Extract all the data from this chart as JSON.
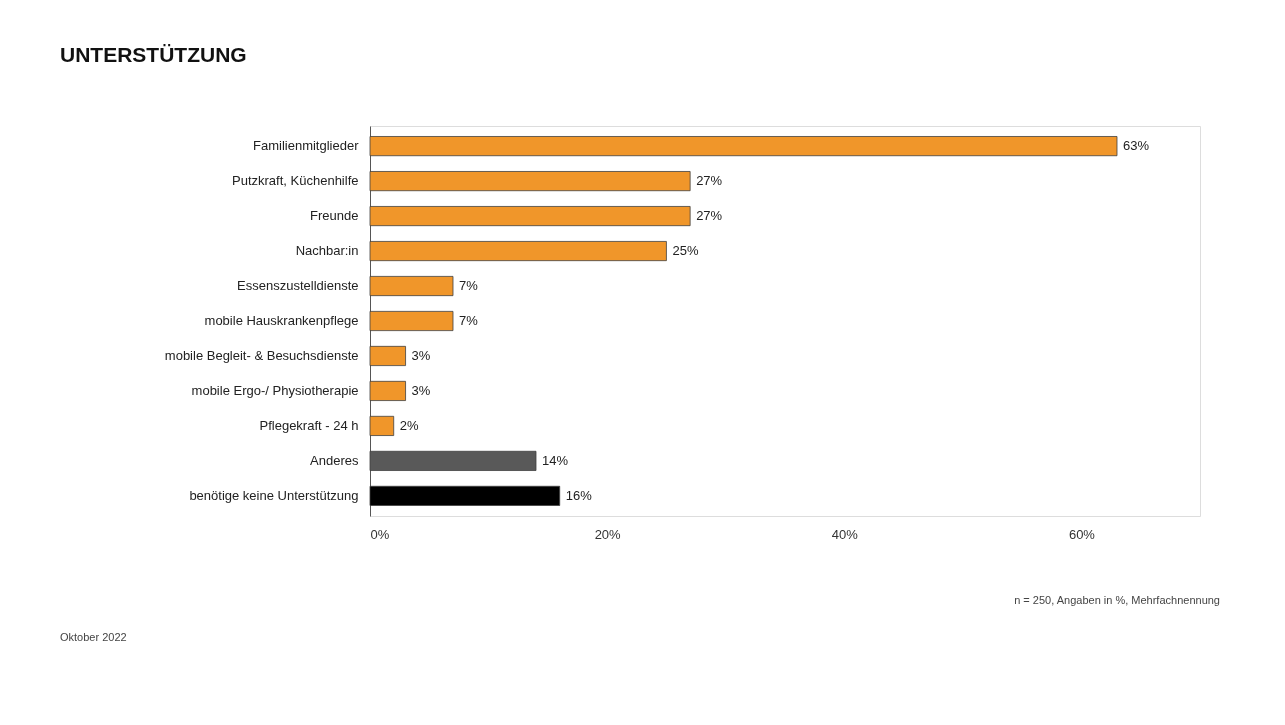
{
  "chart_data": {
    "type": "bar",
    "orientation": "horizontal",
    "title": "UNTERSTÜTZUNG",
    "categories": [
      "Familienmitglieder",
      "Putzkraft, Küchenhilfe",
      "Freunde",
      "Nachbar:in",
      "Essenszustelldienste",
      "mobile Hauskrankenpflege",
      "mobile Begleit- & Besuchsdienste",
      "mobile Ergo-/ Physiotherapie",
      "Pflegekraft - 24 h",
      "Anderes",
      "benötige keine Unterstützung"
    ],
    "values": [
      63,
      27,
      27,
      25,
      7,
      7,
      3,
      3,
      2,
      14,
      16
    ],
    "value_labels": [
      "63%",
      "27%",
      "27%",
      "25%",
      "7%",
      "7%",
      "3%",
      "3%",
      "2%",
      "14%",
      "16%"
    ],
    "colors": [
      "#f0962a",
      "#f0962a",
      "#f0962a",
      "#f0962a",
      "#f0962a",
      "#f0962a",
      "#f0962a",
      "#f0962a",
      "#f0962a",
      "#595959",
      "#000000"
    ],
    "xlim": [
      0,
      70
    ],
    "xticks": [
      {
        "value": 0,
        "label": "0%"
      },
      {
        "value": 20,
        "label": "20%"
      },
      {
        "value": 40,
        "label": "40%"
      },
      {
        "value": 60,
        "label": "60%"
      }
    ],
    "grid": false,
    "annotations": [
      "n = 250, Angaben in %, Mehrfachnennung",
      "Oktober 2022"
    ]
  }
}
